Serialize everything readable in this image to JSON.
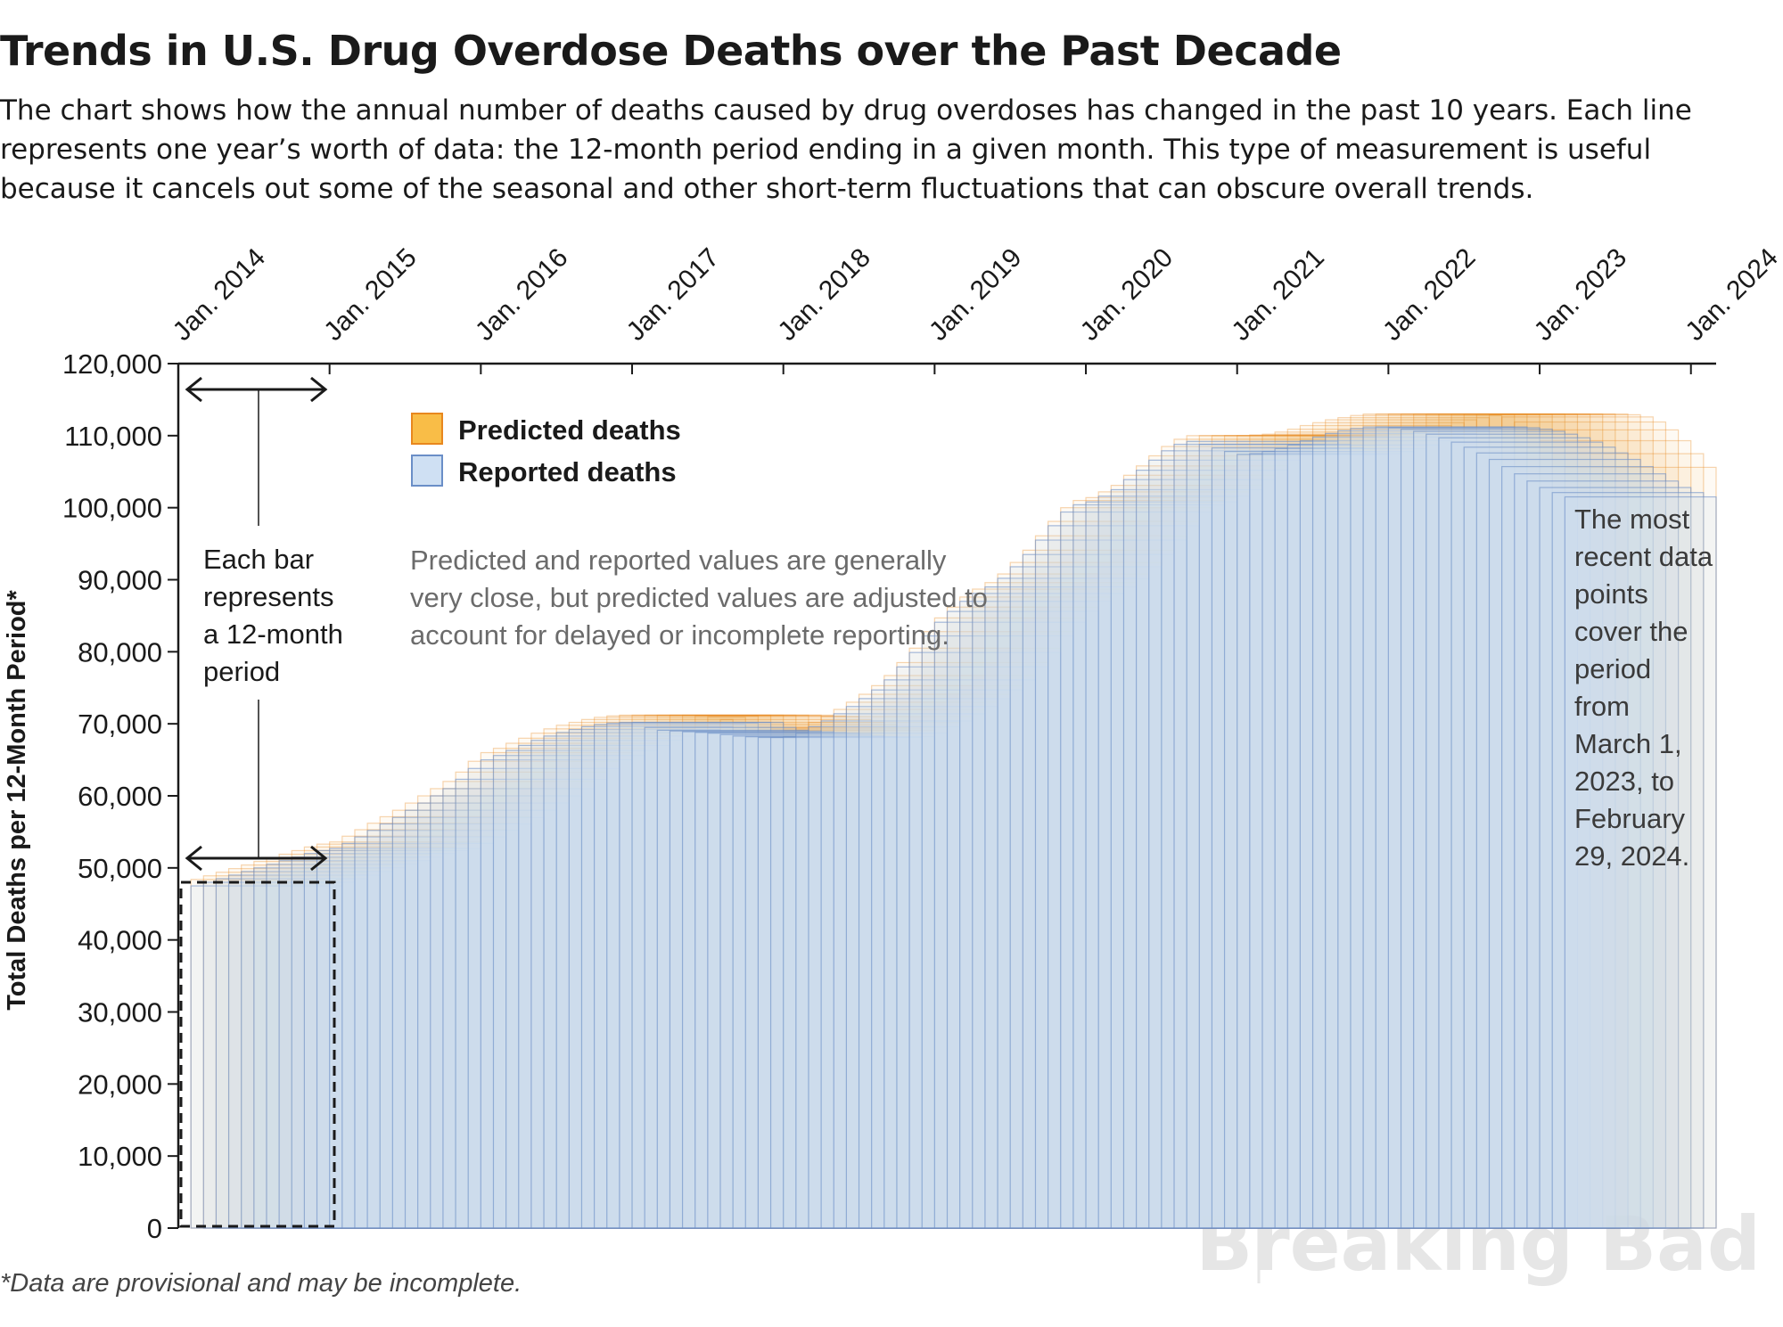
{
  "title": "Trends in U.S. Drug Overdose Deaths over the Past Decade",
  "subtitle": "The chart shows how the annual number of deaths caused by drug overdoses has changed in the past 10 years. Each line represents one year’s worth of data: the 12-month period ending in a given month. This type of measurement is useful because it cancels out some of the seasonal and other short-term fluctuations that can obscure overall trends.",
  "footnote": "*Data are provisional and may be incomplete.",
  "watermark": "Breaking Bad",
  "colors": {
    "predicted_fill": "#f5a623",
    "predicted_stroke": "#e8871e",
    "reported_fill": "#cfe0f3",
    "reported_stroke": "#6a8ec7",
    "text": "#1a1a1a",
    "annotation_gray": "#6b6b6b"
  },
  "chart_data": {
    "type": "bar",
    "ylabel": "Total Deaths per 12-Month Period*",
    "ylim": [
      0,
      120000
    ],
    "yticks": [
      0,
      10000,
      20000,
      30000,
      40000,
      50000,
      60000,
      70000,
      80000,
      90000,
      100000,
      110000,
      120000
    ],
    "ytick_labels": [
      "0",
      "10,000",
      "20,000",
      "30,000",
      "40,000",
      "50,000",
      "60,000",
      "70,000",
      "80,000",
      "90,000",
      "100,000",
      "110,000",
      "120,000"
    ],
    "x_axis": {
      "position": "top",
      "range": [
        "2014-01",
        "2024-02"
      ],
      "tick_labels": [
        "Jan. 2014",
        "Jan. 2015",
        "Jan. 2016",
        "Jan. 2017",
        "Jan. 2018",
        "Jan. 2019",
        "Jan. 2020",
        "Jan. 2021",
        "Jan. 2022",
        "Jan. 2023",
        "Jan. 2024"
      ]
    },
    "legend": {
      "placement": "top-left",
      "entries": [
        {
          "label": "Predicted deaths",
          "color": "#f5a623"
        },
        {
          "label": "Reported deaths",
          "color": "#cfe0f3"
        }
      ]
    },
    "series": [
      {
        "name": "Predicted deaths",
        "period_ending": [
          "2015-01",
          "2015-02",
          "2015-03",
          "2015-04",
          "2015-05",
          "2015-06",
          "2015-07",
          "2015-08",
          "2015-09",
          "2015-10",
          "2015-11",
          "2015-12",
          "2016-01",
          "2016-02",
          "2016-03",
          "2016-04",
          "2016-05",
          "2016-06",
          "2016-07",
          "2016-08",
          "2016-09",
          "2016-10",
          "2016-11",
          "2016-12",
          "2017-01",
          "2017-02",
          "2017-03",
          "2017-04",
          "2017-05",
          "2017-06",
          "2017-07",
          "2017-08",
          "2017-09",
          "2017-10",
          "2017-11",
          "2017-12",
          "2018-01",
          "2018-02",
          "2018-03",
          "2018-04",
          "2018-05",
          "2018-06",
          "2018-07",
          "2018-08",
          "2018-09",
          "2018-10",
          "2018-11",
          "2018-12",
          "2019-01",
          "2019-02",
          "2019-03",
          "2019-04",
          "2019-05",
          "2019-06",
          "2019-07",
          "2019-08",
          "2019-09",
          "2019-10",
          "2019-11",
          "2019-12",
          "2020-01",
          "2020-02",
          "2020-03",
          "2020-04",
          "2020-05",
          "2020-06",
          "2020-07",
          "2020-08",
          "2020-09",
          "2020-10",
          "2020-11",
          "2020-12",
          "2021-01",
          "2021-02",
          "2021-03",
          "2021-04",
          "2021-05",
          "2021-06",
          "2021-07",
          "2021-08",
          "2021-09",
          "2021-10",
          "2021-11",
          "2021-12",
          "2022-01",
          "2022-02",
          "2022-03",
          "2022-04",
          "2022-05",
          "2022-06",
          "2022-07",
          "2022-08",
          "2022-09",
          "2022-10",
          "2022-11",
          "2022-12",
          "2023-01",
          "2023-02",
          "2023-03",
          "2023-04",
          "2023-05",
          "2023-06",
          "2023-07",
          "2023-08",
          "2023-09",
          "2023-10",
          "2023-11",
          "2023-12",
          "2024-01",
          "2024-02"
        ],
        "values": [
          48400,
          48900,
          49400,
          49900,
          50400,
          50900,
          51400,
          51900,
          52400,
          52900,
          53300,
          53600,
          54400,
          55300,
          56200,
          57100,
          58000,
          59000,
          60000,
          61000,
          62000,
          63300,
          64800,
          66000,
          66600,
          67300,
          68000,
          68700,
          69300,
          69800,
          70200,
          70600,
          70900,
          71100,
          71200,
          71200,
          71200,
          71200,
          71200,
          71200,
          71100,
          71000,
          70600,
          70200,
          69900,
          69500,
          69300,
          69100,
          69500,
          70200,
          71000,
          72000,
          73000,
          74100,
          75300,
          76700,
          78500,
          80500,
          82800,
          84700,
          86200,
          87600,
          88700,
          89600,
          90800,
          92400,
          94100,
          96100,
          98100,
          100000,
          101000,
          101400,
          102200,
          103100,
          104500,
          105800,
          107200,
          108500,
          109500,
          110000,
          110000,
          110000,
          110000,
          110000,
          110100,
          110200,
          110500,
          110900,
          111400,
          111800,
          112200,
          112500,
          112800,
          113000,
          113000,
          113000,
          113000,
          113000,
          113000,
          113000,
          113000,
          113000,
          113000,
          112900,
          112600,
          111900,
          110800,
          109300,
          107500,
          105600
        ]
      },
      {
        "name": "Reported deaths",
        "period_ending": [
          "2015-01",
          "2015-02",
          "2015-03",
          "2015-04",
          "2015-05",
          "2015-06",
          "2015-07",
          "2015-08",
          "2015-09",
          "2015-10",
          "2015-11",
          "2015-12",
          "2016-01",
          "2016-02",
          "2016-03",
          "2016-04",
          "2016-05",
          "2016-06",
          "2016-07",
          "2016-08",
          "2016-09",
          "2016-10",
          "2016-11",
          "2016-12",
          "2017-01",
          "2017-02",
          "2017-03",
          "2017-04",
          "2017-05",
          "2017-06",
          "2017-07",
          "2017-08",
          "2017-09",
          "2017-10",
          "2017-11",
          "2017-12",
          "2018-01",
          "2018-02",
          "2018-03",
          "2018-04",
          "2018-05",
          "2018-06",
          "2018-07",
          "2018-08",
          "2018-09",
          "2018-10",
          "2018-11",
          "2018-12",
          "2019-01",
          "2019-02",
          "2019-03",
          "2019-04",
          "2019-05",
          "2019-06",
          "2019-07",
          "2019-08",
          "2019-09",
          "2019-10",
          "2019-11",
          "2019-12",
          "2020-01",
          "2020-02",
          "2020-03",
          "2020-04",
          "2020-05",
          "2020-06",
          "2020-07",
          "2020-08",
          "2020-09",
          "2020-10",
          "2020-11",
          "2020-12",
          "2021-01",
          "2021-02",
          "2021-03",
          "2021-04",
          "2021-05",
          "2021-06",
          "2021-07",
          "2021-08",
          "2021-09",
          "2021-10",
          "2021-11",
          "2021-12",
          "2022-01",
          "2022-02",
          "2022-03",
          "2022-04",
          "2022-05",
          "2022-06",
          "2022-07",
          "2022-08",
          "2022-09",
          "2022-10",
          "2022-11",
          "2022-12",
          "2023-01",
          "2023-02",
          "2023-03",
          "2023-04",
          "2023-05",
          "2023-06",
          "2023-07",
          "2023-08",
          "2023-09",
          "2023-10",
          "2023-11",
          "2023-12",
          "2024-01",
          "2024-02"
        ],
        "values": [
          47500,
          48000,
          48500,
          49000,
          49500,
          50000,
          50500,
          51000,
          51500,
          52000,
          52400,
          52700,
          53400,
          54300,
          55200,
          56100,
          57000,
          58000,
          59000,
          60000,
          61000,
          62300,
          63800,
          65000,
          65600,
          66300,
          67000,
          67700,
          68300,
          68800,
          69200,
          69600,
          69900,
          70100,
          70200,
          70200,
          69500,
          69100,
          69000,
          68900,
          68800,
          68700,
          68500,
          68300,
          68200,
          68100,
          68100,
          68200,
          68700,
          69600,
          70400,
          71400,
          72400,
          73500,
          74700,
          76100,
          77900,
          79900,
          82200,
          84100,
          85600,
          87000,
          88100,
          89000,
          90200,
          91800,
          93500,
          95500,
          97500,
          99400,
          100400,
          100800,
          101600,
          102500,
          103900,
          105200,
          106600,
          107900,
          108800,
          109200,
          108800,
          108300,
          107800,
          107400,
          107500,
          107800,
          108200,
          108700,
          109300,
          109800,
          110300,
          110700,
          111000,
          111200,
          111200,
          111100,
          110900,
          110600,
          110200,
          109700,
          109100,
          108400,
          107600,
          106700,
          105700,
          104700,
          103700,
          102800,
          102100,
          101500
        ]
      }
    ],
    "annotations": [
      {
        "text": "Each bar represents a 12-month period"
      },
      {
        "text": "Predicted and reported values are generally very close, but predicted values are adjusted to account for delayed or incomplete reporting."
      },
      {
        "text": "The most recent data points cover the period from March 1, 2023, to February 29, 2024."
      }
    ]
  }
}
